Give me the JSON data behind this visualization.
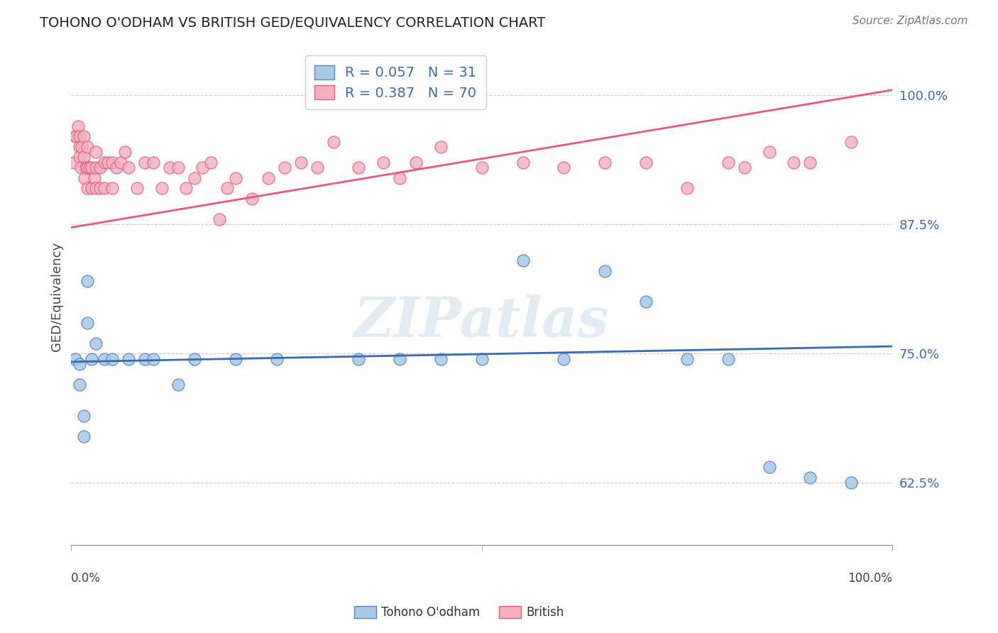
{
  "title": "TOHONO O'ODHAM VS BRITISH GED/EQUIVALENCY CORRELATION CHART",
  "source": "Source: ZipAtlas.com",
  "ylabel": "GED/Equivalency",
  "yticks": [
    0.625,
    0.75,
    0.875,
    1.0
  ],
  "ytick_labels": [
    "62.5%",
    "75.0%",
    "87.5%",
    "100.0%"
  ],
  "xlim": [
    0.0,
    1.0
  ],
  "ylim": [
    0.565,
    1.045
  ],
  "blue_label": "Tohono O'odham",
  "pink_label": "British",
  "blue_R": 0.057,
  "blue_N": 31,
  "pink_R": 0.387,
  "pink_N": 70,
  "blue_color": "#a8c8e8",
  "pink_color": "#f4b0c0",
  "blue_edge_color": "#5588bb",
  "pink_edge_color": "#e06080",
  "blue_line_color": "#3a6bb0",
  "pink_line_color": "#e85880",
  "watermark": "ZIPatlas",
  "blue_scatter_x": [
    0.005,
    0.01,
    0.01,
    0.015,
    0.015,
    0.02,
    0.02,
    0.025,
    0.03,
    0.04,
    0.05,
    0.07,
    0.09,
    0.1,
    0.13,
    0.15,
    0.2,
    0.25,
    0.35,
    0.4,
    0.45,
    0.5,
    0.55,
    0.6,
    0.65,
    0.7,
    0.75,
    0.8,
    0.85,
    0.9,
    0.95
  ],
  "blue_scatter_y": [
    0.745,
    0.74,
    0.72,
    0.69,
    0.67,
    0.82,
    0.78,
    0.745,
    0.76,
    0.745,
    0.745,
    0.745,
    0.745,
    0.745,
    0.72,
    0.745,
    0.745,
    0.745,
    0.745,
    0.745,
    0.745,
    0.745,
    0.84,
    0.745,
    0.83,
    0.8,
    0.745,
    0.745,
    0.64,
    0.63,
    0.625
  ],
  "pink_scatter_x": [
    0.003,
    0.005,
    0.006,
    0.008,
    0.01,
    0.01,
    0.01,
    0.012,
    0.013,
    0.015,
    0.015,
    0.016,
    0.018,
    0.02,
    0.02,
    0.02,
    0.022,
    0.025,
    0.025,
    0.028,
    0.03,
    0.03,
    0.03,
    0.035,
    0.035,
    0.04,
    0.04,
    0.045,
    0.05,
    0.05,
    0.055,
    0.06,
    0.065,
    0.07,
    0.08,
    0.09,
    0.1,
    0.11,
    0.12,
    0.13,
    0.14,
    0.15,
    0.16,
    0.17,
    0.18,
    0.19,
    0.2,
    0.22,
    0.24,
    0.26,
    0.28,
    0.3,
    0.32,
    0.35,
    0.38,
    0.4,
    0.42,
    0.45,
    0.5,
    0.55,
    0.6,
    0.65,
    0.7,
    0.75,
    0.8,
    0.82,
    0.85,
    0.88,
    0.9,
    0.95
  ],
  "pink_scatter_y": [
    0.935,
    0.96,
    0.96,
    0.97,
    0.96,
    0.95,
    0.94,
    0.93,
    0.95,
    0.94,
    0.96,
    0.92,
    0.93,
    0.95,
    0.93,
    0.91,
    0.93,
    0.93,
    0.91,
    0.92,
    0.91,
    0.93,
    0.945,
    0.93,
    0.91,
    0.935,
    0.91,
    0.935,
    0.935,
    0.91,
    0.93,
    0.935,
    0.945,
    0.93,
    0.91,
    0.935,
    0.935,
    0.91,
    0.93,
    0.93,
    0.91,
    0.92,
    0.93,
    0.935,
    0.88,
    0.91,
    0.92,
    0.9,
    0.92,
    0.93,
    0.935,
    0.93,
    0.955,
    0.93,
    0.935,
    0.92,
    0.935,
    0.95,
    0.93,
    0.935,
    0.93,
    0.935,
    0.935,
    0.91,
    0.935,
    0.93,
    0.945,
    0.935,
    0.935,
    0.955
  ],
  "blue_line_x0": 0.0,
  "blue_line_x1": 1.0,
  "blue_line_y0": 0.742,
  "blue_line_y1": 0.757,
  "pink_line_x0": 0.0,
  "pink_line_x1": 1.0,
  "pink_line_y0": 0.872,
  "pink_line_y1": 1.005
}
